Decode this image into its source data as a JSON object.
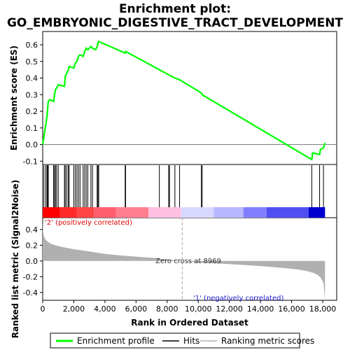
{
  "chart_data": {
    "type": "line",
    "title_line1": "Enrichment plot:",
    "title_line2": "GO_EMBRYONIC_DIGESTIVE_TRACT_DEVELOPMENT",
    "es_panel": {
      "ylabel": "Enrichment score (ES)",
      "ylim": [
        -0.12,
        0.68
      ],
      "yticks": [
        "0.6",
        "0.5",
        "0.4",
        "0.3",
        "0.2",
        "0.1",
        "0.0",
        "-0.1"
      ],
      "ytick_values": [
        0.6,
        0.5,
        0.4,
        0.3,
        0.2,
        0.1,
        0.0,
        -0.1
      ],
      "line_color": "#00ff00",
      "x": [
        0,
        50,
        100,
        150,
        200,
        280,
        320,
        360,
        450,
        700,
        760,
        820,
        900,
        1000,
        1400,
        1450,
        1550,
        1650,
        1700,
        2000,
        2100,
        2200,
        2300,
        2400,
        2600,
        2700,
        2800,
        2900,
        3100,
        3200,
        3400,
        3500,
        3550,
        3600,
        5300,
        5330,
        7500,
        8100,
        8500,
        8800,
        10200,
        10250,
        17300,
        17350,
        17800,
        17850,
        18050,
        18150
      ],
      "y": [
        0.0,
        0.03,
        0.06,
        0.09,
        0.12,
        0.17,
        0.22,
        0.26,
        0.27,
        0.26,
        0.3,
        0.33,
        0.34,
        0.36,
        0.35,
        0.41,
        0.43,
        0.45,
        0.47,
        0.46,
        0.49,
        0.5,
        0.53,
        0.54,
        0.53,
        0.56,
        0.58,
        0.57,
        0.59,
        0.58,
        0.57,
        0.59,
        0.61,
        0.62,
        0.55,
        0.56,
        0.45,
        0.42,
        0.4,
        0.39,
        0.31,
        0.3,
        -0.09,
        -0.05,
        -0.06,
        -0.03,
        -0.02,
        0.01
      ]
    },
    "hits_panel": {
      "hits": [
        80,
        200,
        280,
        320,
        360,
        700,
        760,
        820,
        900,
        1000,
        1400,
        1450,
        1550,
        1650,
        1700,
        2000,
        2100,
        2200,
        2300,
        2400,
        2600,
        2700,
        2800,
        2900,
        3100,
        3200,
        3500,
        3550,
        3600,
        5300,
        5330,
        7500,
        8100,
        8150,
        8500,
        8800,
        10200,
        10250,
        17300,
        17800,
        18050
      ],
      "colorbar": [
        {
          "from": 0,
          "to": 1100,
          "color": "#ff0000"
        },
        {
          "from": 1100,
          "to": 2200,
          "color": "#ff2a2a"
        },
        {
          "from": 2200,
          "to": 3300,
          "color": "#ff4545"
        },
        {
          "from": 3300,
          "to": 4700,
          "color": "#ff5e6e"
        },
        {
          "from": 4700,
          "to": 6800,
          "color": "#ff7e8e"
        },
        {
          "from": 6800,
          "to": 8900,
          "color": "#ffbfe0"
        },
        {
          "from": 8900,
          "to": 11000,
          "color": "#d8d8ff"
        },
        {
          "from": 11000,
          "to": 12900,
          "color": "#b8b8ff"
        },
        {
          "from": 12900,
          "to": 14400,
          "color": "#8080ff"
        },
        {
          "from": 14400,
          "to": 17100,
          "color": "#5050f0"
        },
        {
          "from": 17100,
          "to": 18150,
          "color": "#0000d0"
        }
      ]
    },
    "metric_panel": {
      "ylabel": "Ranked list metric (Signal2Noise)",
      "ylim": [
        -0.5,
        0.55
      ],
      "yticks": [
        "0.4",
        "0.2",
        "0.0",
        "-0.2",
        "-0.4"
      ],
      "ytick_values": [
        0.4,
        0.2,
        0.0,
        -0.2,
        -0.4
      ],
      "x": [
        0,
        30,
        80,
        150,
        300,
        500,
        800,
        1200,
        2000,
        3000,
        4000,
        5000,
        6000,
        7000,
        8000,
        8969,
        10000,
        12000,
        14000,
        15500,
        16500,
        17000,
        17400,
        17700,
        17900,
        18050,
        18100,
        18150
      ],
      "values": [
        0.52,
        0.36,
        0.31,
        0.28,
        0.25,
        0.22,
        0.2,
        0.18,
        0.15,
        0.12,
        0.09,
        0.07,
        0.055,
        0.04,
        0.02,
        0.0,
        -0.02,
        -0.04,
        -0.065,
        -0.09,
        -0.11,
        -0.13,
        -0.15,
        -0.18,
        -0.22,
        -0.28,
        -0.38,
        -0.5
      ],
      "fill_color": "#b0b0b0",
      "zero_cross_label": "Zero cross at 8969",
      "zero_cross_x": 8969,
      "pos_label": "'2' (positively correlated)",
      "neg_label": "'1' (negatively correlated)"
    },
    "xaxis": {
      "xlabel": "Rank in Ordered Dataset",
      "xlim": [
        0,
        18900
      ],
      "xticks": [
        "0",
        "2,000",
        "4,000",
        "6,000",
        "8,000",
        "10,000",
        "12,000",
        "14,000",
        "16,000",
        "18,000"
      ],
      "xtick_values": [
        0,
        2000,
        4000,
        6000,
        8000,
        10000,
        12000,
        14000,
        16000,
        18000
      ]
    },
    "legend": {
      "placement": "bottom",
      "items": [
        {
          "label": "Enrichment profile",
          "color": "#00ff00"
        },
        {
          "label": "Hits",
          "color": "#000000"
        },
        {
          "label": "Ranking metric scores",
          "color": "#b0b0b0"
        }
      ]
    }
  }
}
